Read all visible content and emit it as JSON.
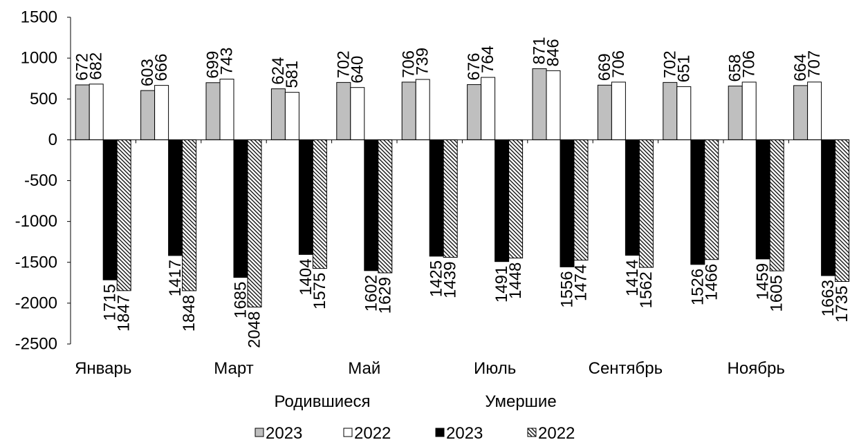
{
  "chart_data": {
    "type": "bar",
    "categories": [
      "Январь",
      "",
      "Март",
      "",
      "Май",
      "",
      "Июль",
      "",
      "Сентябрь",
      "",
      "Ноябрь",
      ""
    ],
    "ylim": [
      -2500,
      1500
    ],
    "yticks": [
      1500,
      1000,
      500,
      0,
      -500,
      -1000,
      -1500,
      -2000,
      -2500
    ],
    "grid": false,
    "legend_placement": "bottom",
    "series": [
      {
        "group": "Родившиеся",
        "name": "2023",
        "fill": "#BFBFBF",
        "values": [
          672,
          603,
          699,
          624,
          702,
          706,
          676,
          871,
          669,
          702,
          658,
          664
        ]
      },
      {
        "group": "Родившиеся",
        "name": "2022",
        "fill": "#FFFFFF",
        "values": [
          682,
          666,
          743,
          581,
          640,
          739,
          764,
          846,
          706,
          651,
          706,
          707
        ]
      },
      {
        "group": "Умершие",
        "name": "2023",
        "fill": "#000000",
        "values": [
          -1715,
          -1417,
          -1685,
          -1404,
          -1602,
          -1425,
          -1491,
          -1556,
          -1414,
          -1526,
          -1459,
          -1663
        ]
      },
      {
        "group": "Умершие",
        "name": "2022",
        "fill": "#FFFFFF",
        "pattern": "diagonal-hatch",
        "values": [
          -1847,
          -1848,
          -2048,
          -1575,
          -1629,
          -1439,
          -1448,
          -1474,
          -1562,
          -1466,
          -1605,
          -1735
        ]
      }
    ]
  }
}
